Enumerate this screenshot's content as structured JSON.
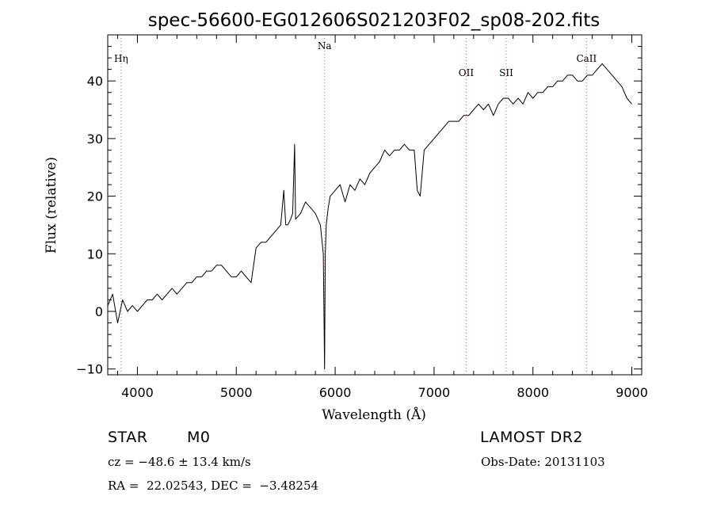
{
  "chart_data": {
    "type": "line",
    "title": "spec-56600-EG012606S021203F02_sp08-202.fits",
    "xlabel": "Wavelength (Å)",
    "ylabel": "Flux (relative)",
    "xlim": [
      3700,
      9100
    ],
    "ylim": [
      -11,
      48
    ],
    "x_ticks": [
      "4000",
      "5000",
      "6000",
      "7000",
      "8000",
      "9000"
    ],
    "y_ticks": [
      "−10",
      "0",
      "10",
      "20",
      "30",
      "40"
    ],
    "grid": false,
    "series": [
      {
        "x": [
          3700,
          3750,
          3800,
          3850,
          3900,
          3950,
          4000,
          4050,
          4100,
          4150,
          4200,
          4250,
          4300,
          4350,
          4400,
          4450,
          4500,
          4550,
          4600,
          4650,
          4700,
          4750,
          4800,
          4850,
          4900,
          4950,
          5000,
          5050,
          5100,
          5150,
          5200,
          5250,
          5300,
          5350,
          5400,
          5450,
          5480,
          5500,
          5520,
          5550,
          5570,
          5590,
          5600,
          5650,
          5700,
          5750,
          5800,
          5850,
          5880,
          5893,
          5900,
          5910,
          5930,
          5950,
          6000,
          6050,
          6100,
          6150,
          6200,
          6250,
          6300,
          6350,
          6400,
          6450,
          6500,
          6550,
          6600,
          6650,
          6700,
          6750,
          6800,
          6830,
          6860,
          6880,
          6900,
          6950,
          7000,
          7050,
          7100,
          7150,
          7200,
          7250,
          7300,
          7350,
          7400,
          7450,
          7500,
          7550,
          7600,
          7650,
          7700,
          7750,
          7800,
          7850,
          7900,
          7950,
          8000,
          8050,
          8100,
          8150,
          8200,
          8250,
          8300,
          8350,
          8400,
          8450,
          8500,
          8550,
          8600,
          8650,
          8700,
          8750,
          8800,
          8850,
          8900,
          8950,
          9000
        ],
        "y": [
          1,
          3,
          -2,
          2,
          0,
          1,
          0,
          1,
          2,
          2,
          3,
          2,
          3,
          4,
          3,
          4,
          5,
          5,
          6,
          6,
          7,
          7,
          8,
          8,
          7,
          6,
          6,
          7,
          6,
          5,
          11,
          12,
          12,
          13,
          14,
          15,
          21,
          15,
          15,
          16,
          17,
          29,
          16,
          17,
          19,
          18,
          17,
          15,
          10,
          -10,
          10,
          15,
          18,
          20,
          21,
          22,
          19,
          22,
          21,
          23,
          22,
          24,
          25,
          26,
          28,
          27,
          28,
          28,
          29,
          28,
          28,
          21,
          20,
          24,
          28,
          29,
          30,
          31,
          32,
          33,
          33,
          33,
          34,
          34,
          35,
          36,
          35,
          36,
          34,
          36,
          37,
          37,
          36,
          37,
          36,
          38,
          37,
          38,
          38,
          39,
          39,
          40,
          40,
          41,
          41,
          40,
          40,
          41,
          41,
          42,
          43,
          42,
          41,
          40,
          39,
          37,
          36
        ]
      }
    ],
    "line_markers": [
      {
        "label": "Hη",
        "x": 3835
      },
      {
        "label": "Na",
        "x": 5893
      },
      {
        "label": "OII",
        "x": 7325
      },
      {
        "label": "SII",
        "x": 7730
      },
      {
        "label": "CaII",
        "x": 8542
      }
    ],
    "marker_color": "#e06060",
    "line_color": "#000000"
  },
  "info": {
    "object_class": "STAR",
    "subclass": "M0",
    "velocity": "cz = −48.6 ± 13.4 km/s",
    "coords": "RA =  22.02543, DEC =  −3.48254",
    "survey": "LAMOST DR2",
    "obs_date": "Obs-Date: 20131103"
  }
}
